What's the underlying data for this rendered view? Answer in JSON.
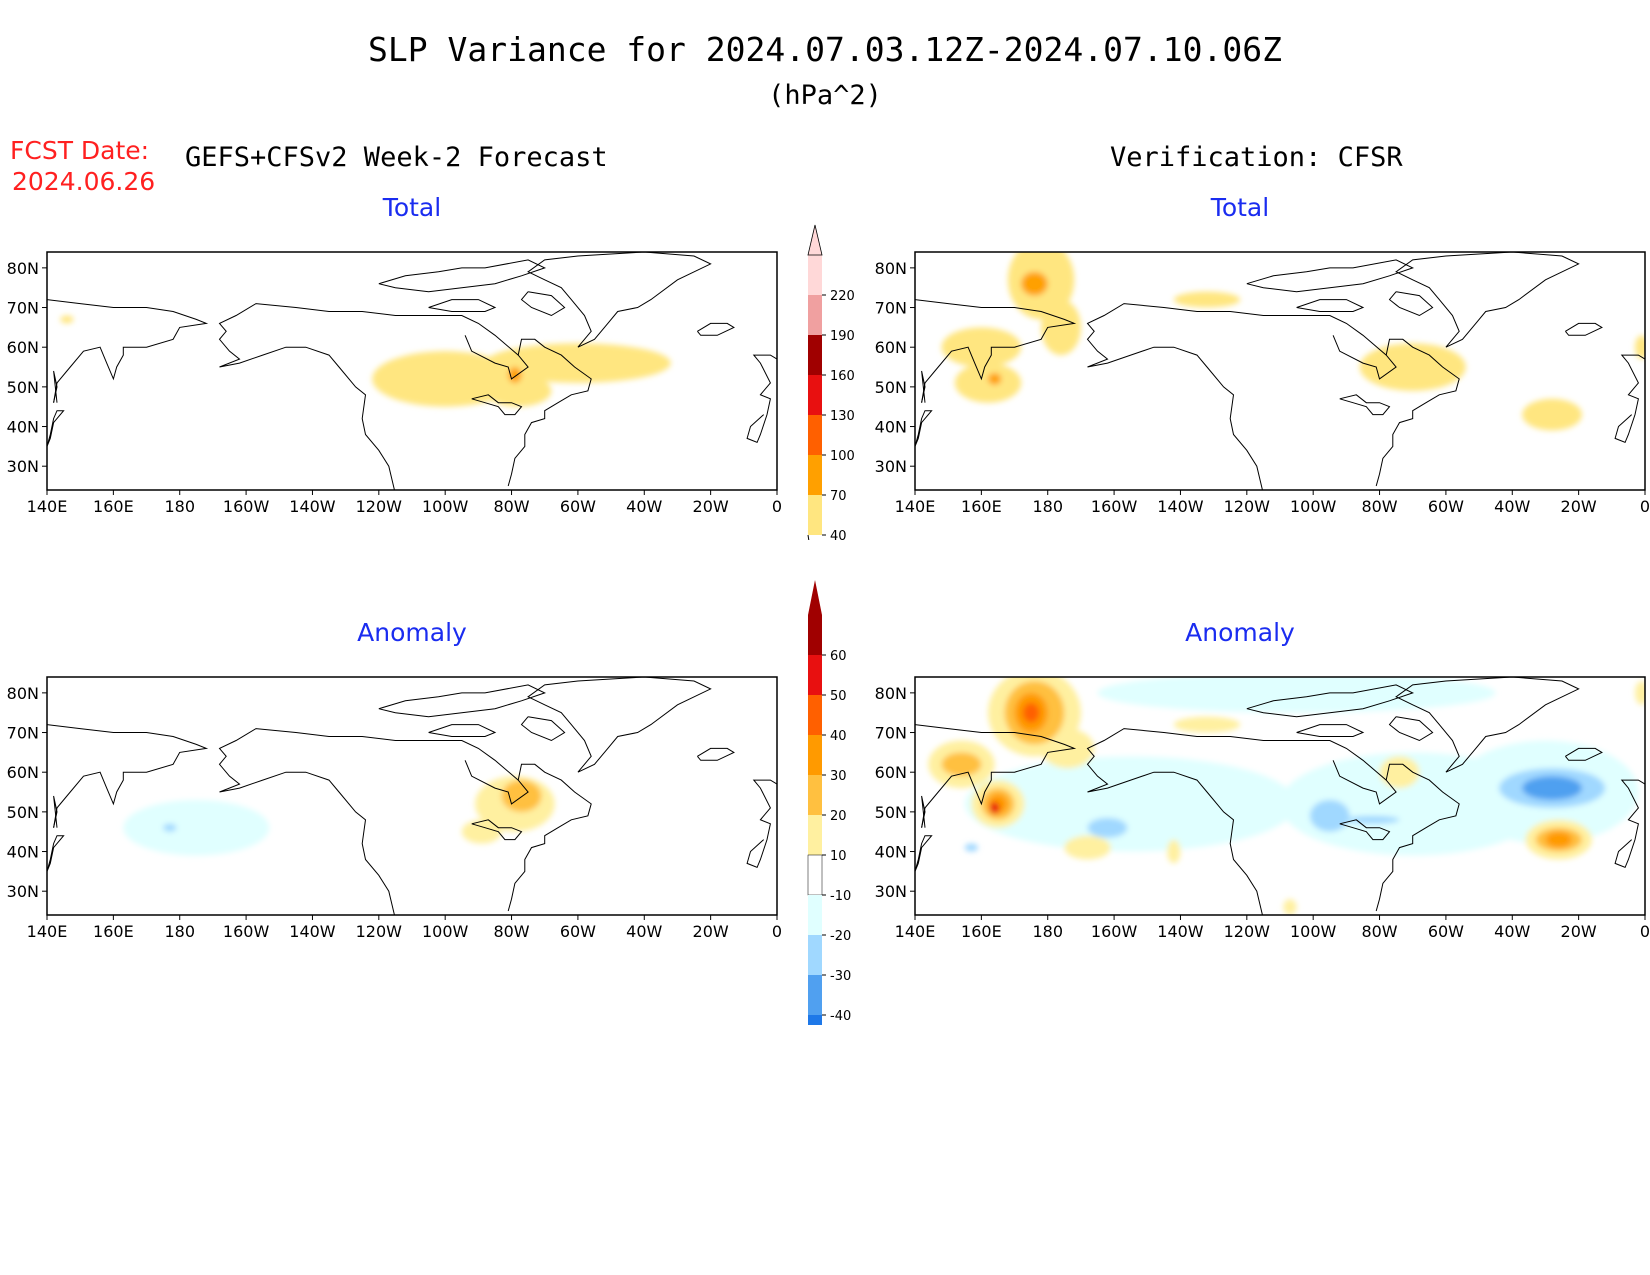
{
  "header": {
    "title": "SLP Variance for 2024.07.03.12Z-2024.07.10.06Z",
    "units": "(hPa^2)",
    "fcst_label": "FCST Date:",
    "fcst_date": "2024.06.26",
    "left_heading": "GEFS+CFSv2 Week-2 Forecast",
    "right_heading": "Verification: CFSR"
  },
  "panels": [
    {
      "id": "fcst-total",
      "title": "Total"
    },
    {
      "id": "verif-total",
      "title": "Total"
    },
    {
      "id": "fcst-anom",
      "title": "Anomaly"
    },
    {
      "id": "verif-anom",
      "title": "Anomaly"
    }
  ],
  "axes": {
    "lon_ticks": [
      "140E",
      "160E",
      "180",
      "160W",
      "140W",
      "120W",
      "100W",
      "80W",
      "60W",
      "40W",
      "20W",
      "0"
    ],
    "lat_ticks": [
      "80N",
      "70N",
      "60N",
      "50N",
      "40N",
      "30N"
    ],
    "lon_range": [
      140,
      360
    ],
    "lat_range": [
      24,
      84
    ]
  },
  "colorbars": {
    "total": {
      "levels": [
        "40",
        "70",
        "100",
        "130",
        "160",
        "190",
        "220"
      ],
      "colors": [
        "#ffe680",
        "#ffa000",
        "#ff6000",
        "#e81010",
        "#a00000",
        "#f0a0a0",
        "#ffd8d8"
      ]
    },
    "anomaly": {
      "levels": [
        "60",
        "50",
        "40",
        "30",
        "20",
        "10",
        "-10",
        "-20",
        "-30",
        "-40"
      ],
      "colors": [
        "#a00000",
        "#e81010",
        "#ff6000",
        "#ff9a00",
        "#ffc040",
        "#fff0a0",
        "#ffffff",
        "#e0ffff",
        "#a0d8ff",
        "#50a0f0",
        "#1e78e8"
      ]
    }
  },
  "fields": {
    "fcst-total": [
      {
        "lon": 260,
        "lat": 52,
        "rx": 22,
        "ry": 7,
        "level": "40"
      },
      {
        "lon": 300,
        "lat": 56,
        "rx": 28,
        "ry": 5,
        "level": "40"
      },
      {
        "lon": 282,
        "lat": 49,
        "rx": 10,
        "ry": 4,
        "level": "40"
      },
      {
        "lon": 146,
        "lat": 67,
        "rx": 2,
        "ry": 1,
        "level": "40"
      },
      {
        "lon": 281,
        "lat": 53,
        "rx": 2,
        "ry": 2,
        "level": "70"
      }
    ],
    "verif-total": [
      {
        "lon": 178,
        "lat": 77,
        "rx": 10,
        "ry": 10,
        "level": "40"
      },
      {
        "lon": 184,
        "lat": 65,
        "rx": 6,
        "ry": 7,
        "level": "40"
      },
      {
        "lon": 160,
        "lat": 60,
        "rx": 12,
        "ry": 5,
        "level": "40"
      },
      {
        "lon": 162,
        "lat": 51,
        "rx": 10,
        "ry": 5,
        "level": "40"
      },
      {
        "lon": 228,
        "lat": 72,
        "rx": 10,
        "ry": 2,
        "level": "40"
      },
      {
        "lon": 290,
        "lat": 55,
        "rx": 16,
        "ry": 6,
        "level": "40"
      },
      {
        "lon": 332,
        "lat": 43,
        "rx": 9,
        "ry": 4,
        "level": "40"
      },
      {
        "lon": 359,
        "lat": 60,
        "rx": 2,
        "ry": 3,
        "level": "40"
      },
      {
        "lon": 176,
        "lat": 76,
        "rx": 4,
        "ry": 3,
        "level": "70"
      },
      {
        "lon": 164,
        "lat": 52,
        "rx": 2,
        "ry": 1.5,
        "level": "70"
      }
    ],
    "fcst-anom": [
      {
        "lon": 185,
        "lat": 46,
        "rx": 22,
        "ry": 7,
        "level": "-10"
      },
      {
        "lon": 177,
        "lat": 46,
        "rx": 2,
        "ry": 1,
        "level": "-20"
      },
      {
        "lon": 281,
        "lat": 52,
        "rx": 12,
        "ry": 7,
        "level": "10"
      },
      {
        "lon": 283,
        "lat": 54,
        "rx": 6,
        "ry": 4,
        "level": "20"
      },
      {
        "lon": 271,
        "lat": 45,
        "rx": 6,
        "ry": 3,
        "level": "10"
      }
    ],
    "verif-anom": [
      {
        "lon": 205,
        "lat": 52,
        "rx": 50,
        "ry": 12,
        "level": "-10"
      },
      {
        "lon": 290,
        "lat": 52,
        "rx": 40,
        "ry": 13,
        "level": "-10"
      },
      {
        "lon": 330,
        "lat": 55,
        "rx": 28,
        "ry": 13,
        "level": "-10"
      },
      {
        "lon": 255,
        "lat": 80,
        "rx": 60,
        "ry": 5,
        "level": "-10"
      },
      {
        "lon": 176,
        "lat": 75,
        "rx": 14,
        "ry": 11,
        "level": "10"
      },
      {
        "lon": 186,
        "lat": 66,
        "rx": 8,
        "ry": 5,
        "level": "10"
      },
      {
        "lon": 154,
        "lat": 62,
        "rx": 10,
        "ry": 6,
        "level": "10"
      },
      {
        "lon": 165,
        "lat": 52,
        "rx": 8,
        "ry": 6,
        "level": "10"
      },
      {
        "lon": 192,
        "lat": 41,
        "rx": 7,
        "ry": 3,
        "level": "10"
      },
      {
        "lon": 218,
        "lat": 40,
        "rx": 2,
        "ry": 3,
        "level": "10"
      },
      {
        "lon": 228,
        "lat": 72,
        "rx": 10,
        "ry": 2,
        "level": "10"
      },
      {
        "lon": 286,
        "lat": 60,
        "rx": 6,
        "ry": 4,
        "level": "10"
      },
      {
        "lon": 334,
        "lat": 43,
        "rx": 10,
        "ry": 5,
        "level": "10"
      },
      {
        "lon": 359,
        "lat": 80,
        "rx": 2,
        "ry": 3,
        "level": "10"
      },
      {
        "lon": 253,
        "lat": 26,
        "rx": 2,
        "ry": 2,
        "level": "10"
      },
      {
        "lon": 176,
        "lat": 75,
        "rx": 9,
        "ry": 8,
        "level": "20"
      },
      {
        "lon": 154,
        "lat": 62,
        "rx": 6,
        "ry": 3,
        "level": "20"
      },
      {
        "lon": 165,
        "lat": 52,
        "rx": 5,
        "ry": 4,
        "level": "20"
      },
      {
        "lon": 334,
        "lat": 43,
        "rx": 7,
        "ry": 3,
        "level": "20"
      },
      {
        "lon": 175,
        "lat": 75,
        "rx": 5,
        "ry": 5,
        "level": "30"
      },
      {
        "lon": 165,
        "lat": 52,
        "rx": 3,
        "ry": 2.5,
        "level": "30"
      },
      {
        "lon": 334,
        "lat": 43,
        "rx": 4,
        "ry": 2,
        "level": "30"
      },
      {
        "lon": 175,
        "lat": 75,
        "rx": 2.5,
        "ry": 2.5,
        "level": "40"
      },
      {
        "lon": 164,
        "lat": 51,
        "rx": 1.5,
        "ry": 1.5,
        "level": "50"
      },
      {
        "lon": 265,
        "lat": 49,
        "rx": 6,
        "ry": 4,
        "level": "-20"
      },
      {
        "lon": 198,
        "lat": 46,
        "rx": 6,
        "ry": 2.5,
        "level": "-20"
      },
      {
        "lon": 157,
        "lat": 41,
        "rx": 2,
        "ry": 1,
        "level": "-20"
      },
      {
        "lon": 332,
        "lat": 56,
        "rx": 16,
        "ry": 5,
        "level": "-20"
      },
      {
        "lon": 332,
        "lat": 56,
        "rx": 9,
        "ry": 3,
        "level": "-30"
      },
      {
        "lon": 278,
        "lat": 48,
        "rx": 8,
        "ry": 1,
        "level": "-20"
      }
    ]
  }
}
